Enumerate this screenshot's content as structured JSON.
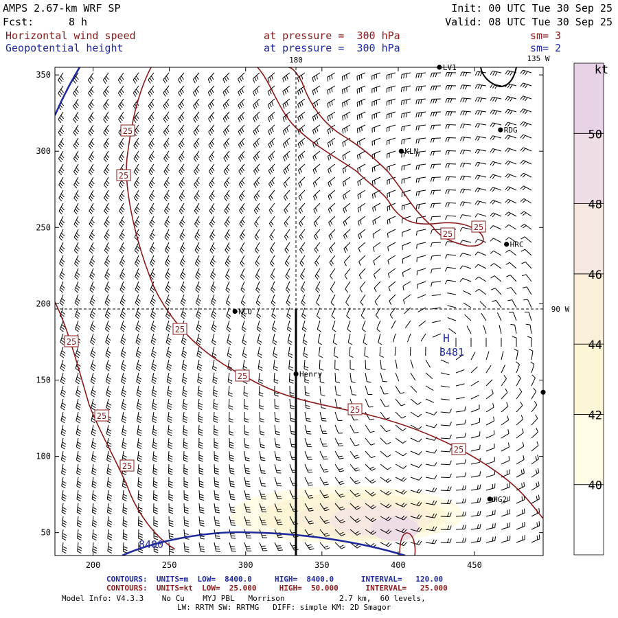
{
  "header": {
    "model": "AMPS 2.67-km WRF SP",
    "forecast_label": "Fcst:",
    "forecast_value": "8 h",
    "init": "Init: 00 UTC Tue 30 Sep 25",
    "valid": "Valid: 08 UTC Tue 30 Sep 25",
    "field1": "Horizontal wind speed",
    "field2": "Geopotential height",
    "level1": "at pressure =  300 hPa",
    "level2": "at pressure =  300 hPa",
    "sm1": "sm= 3",
    "sm2": "sm= 2"
  },
  "map": {
    "lon_labels": [
      "180",
      "135 W",
      "90 W"
    ],
    "x_ticks": [
      "200",
      "250",
      "300",
      "350",
      "400",
      "450"
    ],
    "y_ticks": [
      "350",
      "300",
      "250",
      "200",
      "150",
      "100",
      "50"
    ],
    "x_range": [
      175,
      495
    ],
    "y_range": [
      35,
      355
    ],
    "stations": [
      {
        "name": "LV1",
        "x": 427,
        "y": 355
      },
      {
        "name": "RDG",
        "x": 467,
        "y": 314
      },
      {
        "name": "KLN",
        "x": 402,
        "y": 300
      },
      {
        "name": "HRC",
        "x": 471,
        "y": 239
      },
      {
        "name": "NCO",
        "x": 293,
        "y": 195
      },
      {
        "name": "Henry",
        "x": 333,
        "y": 154
      },
      {
        "name": "HG2",
        "x": 460,
        "y": 72
      },
      {
        "name": "",
        "x": 495,
        "y": 142
      }
    ],
    "high_label": "H",
    "high_value": "8481",
    "height_contour_label": "8400",
    "speed_contour_label": "25",
    "colors": {
      "speed_contour": "#8b1a1a",
      "height_contour": "#1f2a9c",
      "barbs": "#000000"
    }
  },
  "colorbar": {
    "unit": "kt",
    "labels": [
      "50",
      "48",
      "46",
      "44",
      "42",
      "40"
    ],
    "levels": [
      {
        "from": 38,
        "to": 40,
        "color": "#ffffff"
      },
      {
        "from": 40,
        "to": 42,
        "color": "#fffbe6"
      },
      {
        "from": 42,
        "to": 44,
        "color": "#fdf6d6"
      },
      {
        "from": 44,
        "to": 46,
        "color": "#faf0da"
      },
      {
        "from": 46,
        "to": 48,
        "color": "#f6e8e0"
      },
      {
        "from": 48,
        "to": 50,
        "color": "#eedce6"
      },
      {
        "from": 50,
        "to": 52,
        "color": "#e8d3e6"
      }
    ]
  },
  "footer": {
    "row1_blue": "CONTOURS:  UNITS=m  LOW=  8400.0     HIGH=  8400.0      INTERVAL=   120.00",
    "row2_red": "CONTOURS:  UNITS=kt  LOW=  25.000     HIGH=  50.000      INTERVAL=   25.000",
    "row3": "Model Info: V4.3.3    No Cu    MYJ PBL   Morrison            2.7 km,  60 levels,",
    "row4": "LW: RRTM SW: RRTMG   DIFF: simple KM: 2D Smagor"
  }
}
